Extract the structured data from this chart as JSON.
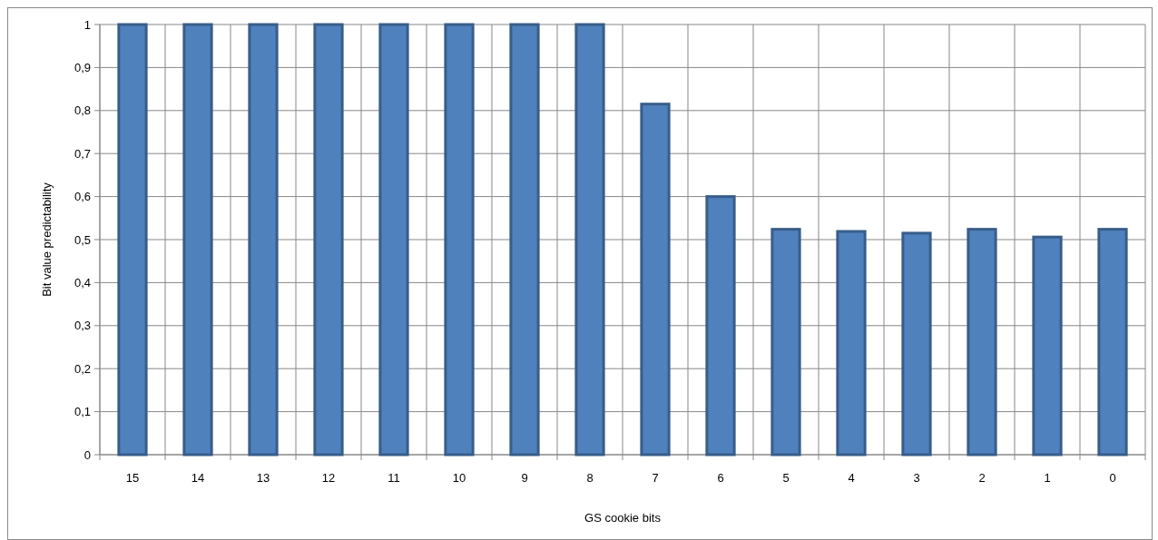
{
  "chart_data": {
    "type": "bar",
    "xlabel": "GS cookie bits",
    "ylabel": "Bit value predictability",
    "categories": [
      "15",
      "14",
      "13",
      "12",
      "11",
      "10",
      "9",
      "8",
      "7",
      "6",
      "5",
      "4",
      "3",
      "2",
      "1",
      "0"
    ],
    "values": [
      1,
      1,
      1,
      1,
      1,
      1,
      1,
      1,
      0.815,
      0.6,
      0.524,
      0.519,
      0.515,
      0.524,
      0.506,
      0.524
    ],
    "color": "#4f81bd",
    "ylim": [
      0,
      1
    ],
    "yticks": [
      0,
      {
        "value": 0.1,
        "label": "0,1"
      },
      {
        "value": 0.2,
        "label": "0,2"
      },
      {
        "value": 0.3,
        "label": "0,3"
      },
      {
        "value": 0.4,
        "label": "0,4"
      },
      {
        "value": 0.5,
        "label": "0,5"
      },
      {
        "value": 0.6,
        "label": "0,6"
      },
      {
        "value": 0.7,
        "label": "0,7"
      },
      {
        "value": 0.8,
        "label": "0,8"
      },
      {
        "value": 0.9,
        "label": "0,9"
      },
      1
    ],
    "grid": true
  }
}
